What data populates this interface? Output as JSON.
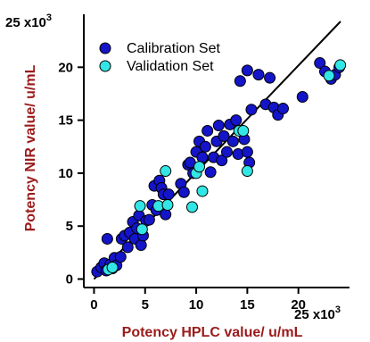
{
  "chart_data": {
    "type": "scatter",
    "xlabel": "Potency HPLC value/ u/mL",
    "ylabel": "Potency NIR value/ u/mL",
    "x_multiplier_label": "25 x10",
    "y_multiplier_label": "25 x10",
    "multiplier_exponent": "3",
    "xlim": [
      -1,
      25
    ],
    "ylim": [
      -0.8,
      25
    ],
    "x_ticks": [
      0,
      5,
      10,
      15,
      20
    ],
    "y_ticks": [
      0,
      5,
      10,
      15,
      20
    ],
    "x_tick_labels": [
      "0",
      "5",
      "10",
      "15",
      "20"
    ],
    "y_tick_labels": [
      "0",
      "5",
      "10",
      "15",
      "20"
    ],
    "grid": false,
    "legend_position": "top-left",
    "reference_line": {
      "from": [
        0,
        0
      ],
      "to": [
        25,
        25
      ],
      "color": "#000000"
    },
    "series": [
      {
        "name": "Calibration Set",
        "color": "#1414c8",
        "points": [
          [
            0.3,
            0.7
          ],
          [
            0.7,
            1.1
          ],
          [
            1.0,
            1.5
          ],
          [
            1.2,
            0.8
          ],
          [
            1.3,
            3.8
          ],
          [
            1.6,
            1.4
          ],
          [
            1.8,
            1.0
          ],
          [
            2.0,
            2.0
          ],
          [
            2.2,
            1.3
          ],
          [
            2.6,
            2.1
          ],
          [
            2.7,
            3.8
          ],
          [
            3.0,
            4.1
          ],
          [
            3.3,
            3.0
          ],
          [
            3.5,
            4.4
          ],
          [
            3.8,
            5.4
          ],
          [
            4.0,
            3.8
          ],
          [
            4.2,
            4.8
          ],
          [
            4.4,
            6.0
          ],
          [
            4.6,
            3.2
          ],
          [
            4.8,
            4.1
          ],
          [
            5.1,
            5.5
          ],
          [
            5.4,
            5.6
          ],
          [
            5.7,
            7.0
          ],
          [
            5.9,
            8.8
          ],
          [
            6.1,
            6.5
          ],
          [
            6.4,
            9.3
          ],
          [
            6.6,
            8.6
          ],
          [
            6.8,
            8.0
          ],
          [
            7.0,
            6.1
          ],
          [
            7.3,
            8.0
          ],
          [
            8.5,
            9.0
          ],
          [
            8.8,
            8.2
          ],
          [
            9.2,
            10.8
          ],
          [
            9.4,
            11.0
          ],
          [
            9.7,
            10.0
          ],
          [
            10.0,
            12.0
          ],
          [
            10.3,
            13.0
          ],
          [
            10.6,
            11.5
          ],
          [
            10.9,
            12.5
          ],
          [
            11.1,
            14.0
          ],
          [
            11.4,
            10.1
          ],
          [
            11.7,
            11.5
          ],
          [
            12.0,
            13.0
          ],
          [
            12.2,
            14.5
          ],
          [
            12.5,
            11.2
          ],
          [
            12.7,
            13.5
          ],
          [
            13.0,
            12.0
          ],
          [
            13.3,
            14.6
          ],
          [
            13.6,
            13.0
          ],
          [
            13.9,
            15.0
          ],
          [
            14.1,
            11.8
          ],
          [
            14.3,
            18.7
          ],
          [
            14.5,
            14.0
          ],
          [
            14.7,
            13.2
          ],
          [
            15.0,
            12.0
          ],
          [
            15.2,
            11.0
          ],
          [
            15.4,
            16.0
          ],
          [
            15.0,
            19.7
          ],
          [
            16.1,
            19.3
          ],
          [
            16.8,
            16.5
          ],
          [
            17.2,
            19.0
          ],
          [
            17.6,
            16.2
          ],
          [
            18.0,
            15.5
          ],
          [
            18.5,
            16.1
          ],
          [
            20.4,
            17.2
          ],
          [
            22.1,
            20.4
          ],
          [
            22.6,
            19.6
          ],
          [
            23.2,
            18.9
          ],
          [
            23.6,
            19.3
          ],
          [
            24.0,
            20.0
          ]
        ]
      },
      {
        "name": "Validation Set",
        "color": "#33e6e6",
        "points": [
          [
            1.4,
            0.9
          ],
          [
            1.8,
            1.1
          ],
          [
            4.5,
            6.9
          ],
          [
            4.7,
            4.7
          ],
          [
            6.3,
            6.9
          ],
          [
            7.0,
            10.2
          ],
          [
            7.2,
            7.0
          ],
          [
            9.6,
            6.8
          ],
          [
            10.0,
            10.0
          ],
          [
            10.3,
            10.6
          ],
          [
            10.6,
            8.3
          ],
          [
            14.2,
            14.0
          ],
          [
            14.6,
            14.0
          ],
          [
            15.0,
            10.2
          ],
          [
            23.0,
            19.2
          ],
          [
            24.1,
            20.2
          ]
        ]
      }
    ]
  }
}
